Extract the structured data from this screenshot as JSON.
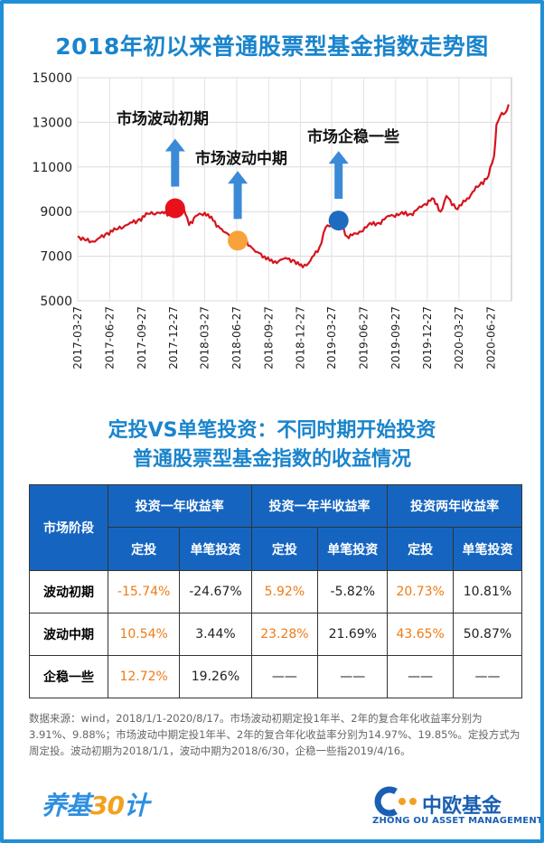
{
  "chart_data": {
    "type": "line",
    "title": "2018年初以来普通股票型基金指数走势图",
    "ylim": [
      5000,
      15000
    ],
    "yticks": [
      "15000",
      "13000",
      "11000",
      "9000",
      "7000",
      "5000"
    ],
    "ytick_values": [
      15000,
      13000,
      11000,
      9000,
      7000,
      5000
    ],
    "xticks": [
      "2017-03-27",
      "2017-06-27",
      "2017-09-27",
      "2017-12-27",
      "2018-03-27",
      "2018-06-27",
      "2018-09-27",
      "2018-12-27",
      "2019-03-27",
      "2019-06-27",
      "2019-09-27",
      "2019-12-27",
      "2020-03-27",
      "2020-06-27"
    ],
    "x": [
      "2017-03-27",
      "2017-04-15",
      "2017-05-15",
      "2017-06-15",
      "2017-07-15",
      "2017-08-15",
      "2017-09-15",
      "2017-10-15",
      "2017-11-15",
      "2017-12-15",
      "2018-01-01",
      "2018-01-25",
      "2018-02-10",
      "2018-03-01",
      "2018-03-27",
      "2018-04-20",
      "2018-05-20",
      "2018-06-30",
      "2018-07-20",
      "2018-08-20",
      "2018-09-15",
      "2018-10-10",
      "2018-11-10",
      "2018-12-10",
      "2019-01-03",
      "2019-01-25",
      "2019-02-20",
      "2019-03-10",
      "2019-04-16",
      "2019-05-10",
      "2019-06-10",
      "2019-07-10",
      "2019-08-10",
      "2019-09-10",
      "2019-10-10",
      "2019-11-10",
      "2019-12-10",
      "2020-01-10",
      "2020-02-03",
      "2020-02-20",
      "2020-03-23",
      "2020-04-20",
      "2020-05-20",
      "2020-06-20",
      "2020-07-06",
      "2020-07-13",
      "2020-07-24",
      "2020-08-06",
      "2020-08-17"
    ],
    "values": [
      7900,
      7750,
      7650,
      8000,
      8200,
      8400,
      8600,
      8900,
      8950,
      8900,
      9150,
      9200,
      8400,
      8800,
      8950,
      8600,
      8100,
      7700,
      7750,
      7200,
      7000,
      6700,
      6900,
      6800,
      6500,
      6800,
      7400,
      8300,
      8600,
      7900,
      8000,
      8400,
      8500,
      8800,
      8900,
      8900,
      9200,
      9600,
      9000,
      9700,
      9100,
      9600,
      10100,
      10600,
      11500,
      12900,
      13300,
      13400,
      13800
    ],
    "markers": [
      {
        "label": "市场波动初期",
        "date": "2018-01-01",
        "value": 9150,
        "color": "#e8111b"
      },
      {
        "label": "市场波动中期",
        "date": "2018-06-30",
        "value": 7700,
        "color": "#f7a23b"
      },
      {
        "label": "市场企稳一些",
        "date": "2019-04-16",
        "value": 8600,
        "color": "#1e6cbf"
      }
    ],
    "line_color": "#d6141d",
    "arrow_color": "#3b8ad8",
    "grid": true
  },
  "table": {
    "title_line1": "定投VS单笔投资：不同时期开始投资",
    "title_line2": "普通股票型基金指数的收益情况",
    "stage_header": "市场阶段",
    "group_headers": [
      "投资一年收益率",
      "投资一年半收益率",
      "投资两年收益率"
    ],
    "sub_headers": [
      "定投",
      "单笔投资",
      "定投",
      "单笔投资",
      "定投",
      "单笔投资"
    ],
    "rows": [
      {
        "stage": "波动初期",
        "cells": [
          "-15.74%",
          "-24.67%",
          "5.92%",
          "-5.82%",
          "20.73%",
          "10.81%"
        ]
      },
      {
        "stage": "波动中期",
        "cells": [
          "10.54%",
          "3.44%",
          "23.28%",
          "21.69%",
          "43.65%",
          "50.87%"
        ]
      },
      {
        "stage": "企稳一些",
        "cells": [
          "12.72%",
          "19.26%",
          "——",
          "——",
          "——",
          "——"
        ]
      }
    ]
  },
  "notes": "数据来源：wind，2018/1/1-2020/8/17。市场波动初期定投1年半、2年的复合年化收益率分别为3.91%、9.88%；市场波动中期定投1年半、2年的复合年化收益率分别为14.97%、19.85%。定投方式为周定投。波动初期为2018/1/1，波动中期为2018/6/30，企稳一些指2019/4/16。",
  "logo_left": {
    "part1": "养基",
    "part2": "30",
    "part3": "计"
  },
  "logo_right": {
    "cn": "中欧基金",
    "en": "ZHONG OU ASSET MANAGEMENT"
  },
  "colors": {
    "accent": "#1a84cc",
    "table_header": "#1565c0",
    "positive_text": "#ee7b16"
  }
}
